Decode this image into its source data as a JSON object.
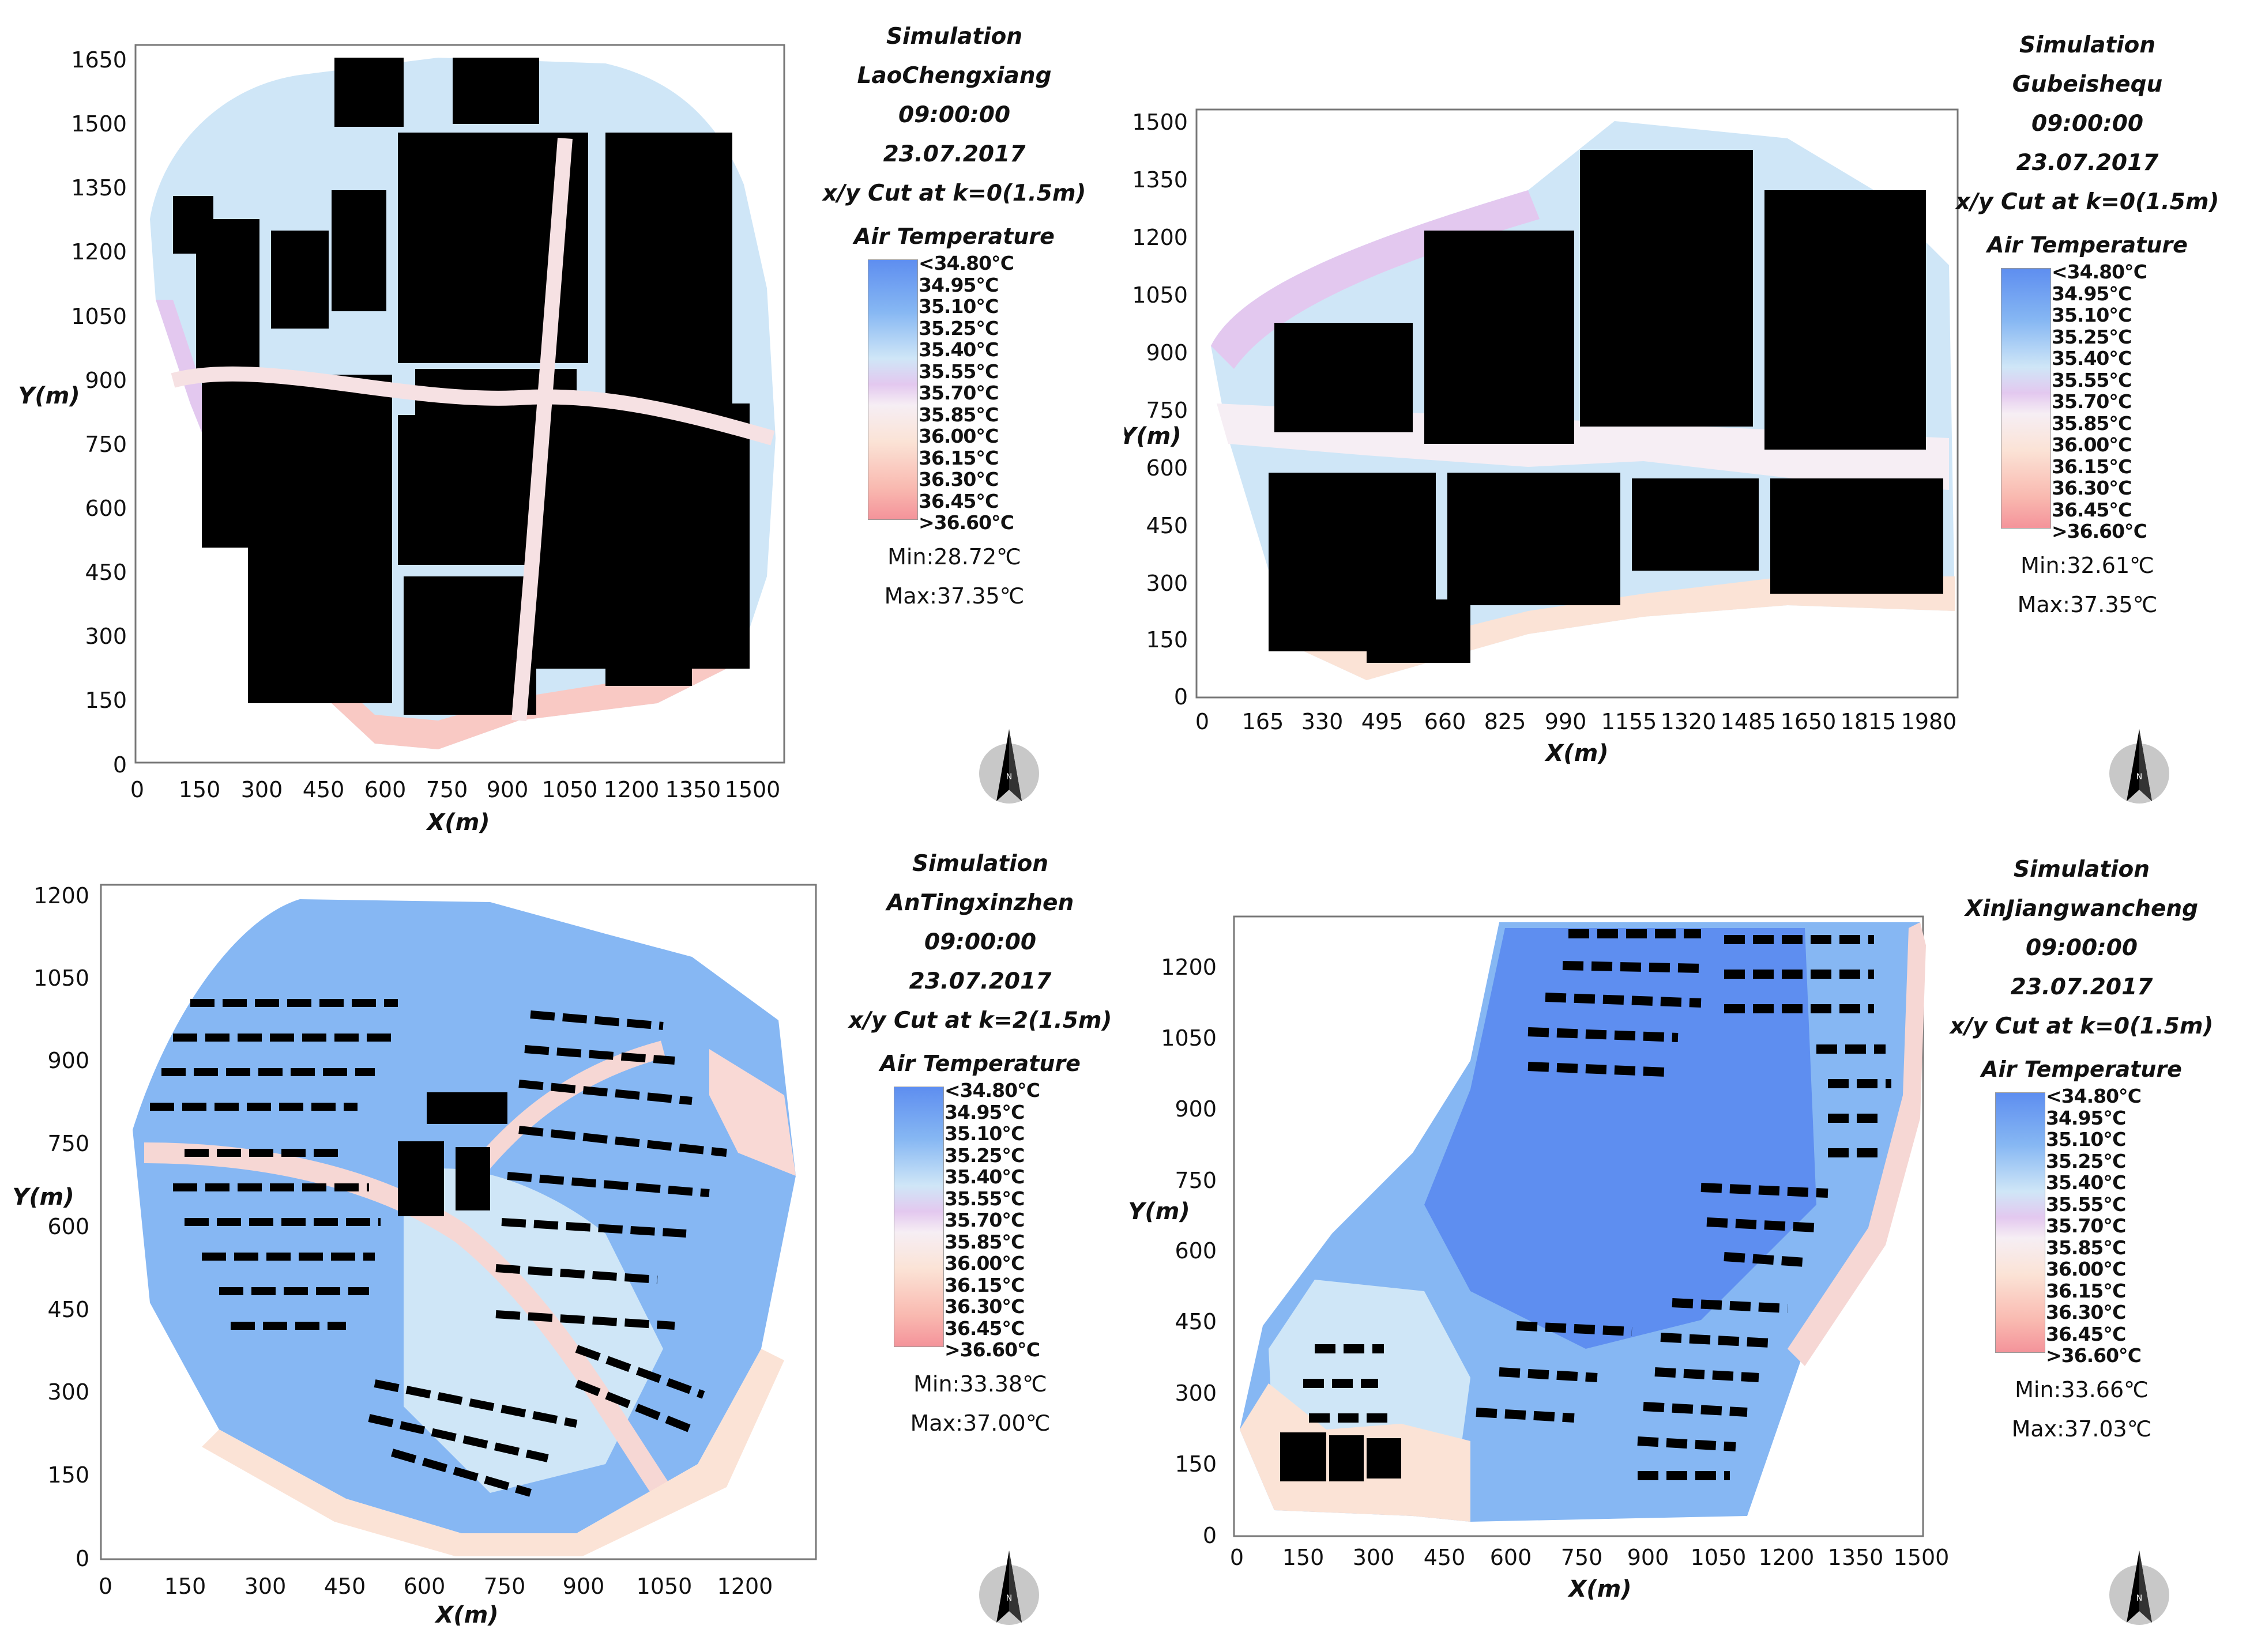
{
  "panels": [
    {
      "simulation": "Simulation",
      "area": "LaoChengxiang",
      "time": "09:00:00",
      "date": "23.07.2017",
      "cut": "x/y Cut at k=0(1.5m)",
      "legend_title": "Air Temperature",
      "min": "Min:28.72℃",
      "max": "Max:37.35℃",
      "xlabel": "X(m)",
      "ylabel": "Y(m)",
      "x_ticks": [
        "0",
        "150",
        "300",
        "450",
        "600",
        "750",
        "900",
        "1050",
        "1200",
        "1350",
        "1500"
      ],
      "y_ticks": [
        "0",
        "150",
        "300",
        "450",
        "600",
        "750",
        "900",
        "1050",
        "1200",
        "1350",
        "1500",
        "1650"
      ]
    },
    {
      "simulation": "Simulation",
      "area": "Gubeishequ",
      "time": "09:00:00",
      "date": "23.07.2017",
      "cut": "x/y Cut at k=0(1.5m)",
      "legend_title": "Air Temperature",
      "min": "Min:32.61℃",
      "max": "Max:37.35℃",
      "xlabel": "X(m)",
      "ylabel": "Y(m)",
      "x_ticks": [
        "0",
        "165",
        "330",
        "495",
        "660",
        "825",
        "990",
        "1155",
        "1320",
        "1485",
        "1650",
        "1815",
        "1980"
      ],
      "y_ticks": [
        "0",
        "150",
        "300",
        "450",
        "600",
        "750",
        "900",
        "1050",
        "1200",
        "1350",
        "1500"
      ]
    },
    {
      "simulation": "Simulation",
      "area": "AnTingxinzhen",
      "time": "09:00:00",
      "date": "23.07.2017",
      "cut": "x/y Cut at k=2(1.5m)",
      "legend_title": "Air Temperature",
      "min": "Min:33.38℃",
      "max": "Max:37.00℃",
      "xlabel": "X(m)",
      "ylabel": "Y(m)",
      "x_ticks": [
        "0",
        "150",
        "300",
        "450",
        "600",
        "750",
        "900",
        "1050",
        "1200"
      ],
      "y_ticks": [
        "0",
        "150",
        "300",
        "450",
        "600",
        "750",
        "900",
        "1050",
        "1200"
      ]
    },
    {
      "simulation": "Simulation",
      "area": "XinJiangwancheng",
      "time": "09:00:00",
      "date": "23.07.2017",
      "cut": "x/y Cut at k=0(1.5m)",
      "legend_title": "Air Temperature",
      "min": "Min:33.66℃",
      "max": "Max:37.03℃",
      "xlabel": "X(m)",
      "ylabel": "Y(m)",
      "x_ticks": [
        "0",
        "150",
        "300",
        "450",
        "600",
        "750",
        "900",
        "1050",
        "1200",
        "1350",
        "1500"
      ],
      "y_ticks": [
        "0",
        "150",
        "300",
        "450",
        "600",
        "750",
        "900",
        "1050",
        "1200"
      ]
    }
  ],
  "legend_labels": [
    "<34.80℃",
    "34.95℃",
    "35.10℃",
    "35.25℃",
    "35.40℃",
    "35.55℃",
    "35.70℃",
    "35.85℃",
    "36.00℃",
    "36.15℃",
    "36.30℃",
    "36.45℃",
    ">36.60℃"
  ],
  "colors": {
    "cold": "#5e8ef0",
    "cool": "#cfe6f7",
    "mid": "#e3c8ef",
    "warm": "#fbe3d6",
    "hot": "#f4939a",
    "building": "#000000"
  },
  "icons": {
    "compass": "north-arrow-icon"
  }
}
